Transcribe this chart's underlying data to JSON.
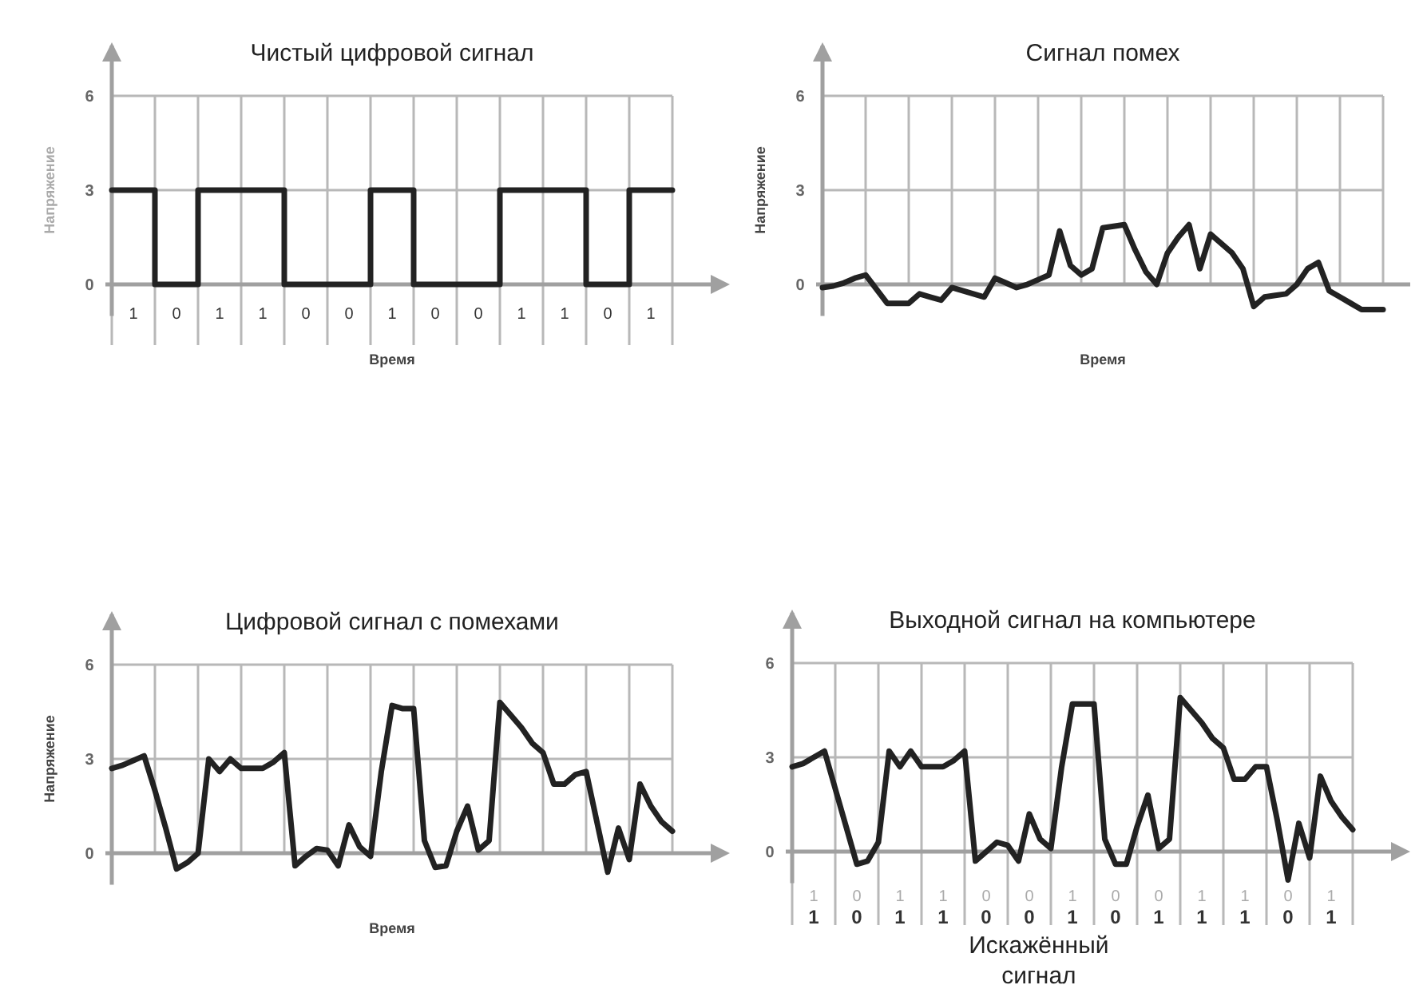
{
  "chart_data": [
    {
      "type": "step",
      "title": "Чистый цифровой сигнал",
      "xlabel": "Время",
      "ylabel": "Напряжение",
      "ylim": [
        -1,
        7.6
      ],
      "yticks": [
        0,
        3,
        6
      ],
      "grid": true,
      "categories": [
        null,
        null,
        "1",
        null,
        null,
        null,
        "0",
        null,
        null,
        null,
        "1",
        null,
        null,
        null,
        "1",
        null,
        null,
        null,
        "0",
        null,
        null,
        null,
        "0",
        null,
        null,
        null,
        "1",
        null,
        null,
        null,
        "0",
        null,
        null,
        null,
        "0",
        null,
        null,
        null,
        "1",
        null,
        null,
        null,
        "1",
        null,
        null,
        null,
        "0",
        null,
        null,
        null,
        "1",
        null,
        null
      ],
      "series": [
        {
          "color": "#222222",
          "values": [
            3,
            3,
            3,
            3,
            0,
            0,
            0,
            0,
            3,
            3,
            3,
            3,
            3,
            3,
            3,
            3,
            0,
            0,
            0,
            0,
            0,
            0,
            0,
            0,
            3,
            3,
            3,
            3,
            0,
            0,
            0,
            0,
            0,
            0,
            0,
            0,
            3,
            3,
            3,
            3,
            3,
            3,
            3,
            3,
            0,
            0,
            0,
            0,
            3,
            3,
            3,
            3,
            3
          ]
        }
      ]
    },
    {
      "type": "line",
      "title": "Сигнал помех",
      "xlabel": "Время",
      "ylabel": "Напряжение",
      "ylim": [
        -1,
        7.6
      ],
      "yticks": [
        0,
        3,
        6
      ],
      "grid": true,
      "categories": [
        null,
        null,
        null,
        null,
        null,
        null,
        null,
        null,
        null,
        null,
        null,
        null,
        null,
        null,
        null,
        null,
        null,
        null,
        null,
        null,
        null,
        null,
        null,
        null,
        null,
        null,
        null,
        null,
        null,
        null,
        null,
        null,
        null,
        null,
        null,
        null,
        null,
        null,
        null,
        null,
        null,
        null,
        null,
        null,
        null,
        null,
        null,
        null,
        null,
        null,
        null,
        null,
        null
      ],
      "series": [
        {
          "color": "#222222",
          "values": [
            -0.1,
            -0.05,
            0.05,
            0.2,
            0.3,
            -0.15,
            -0.6,
            -0.6,
            -0.6,
            -0.3,
            -0.4,
            -0.5,
            -0.1,
            -0.2,
            -0.3,
            -0.4,
            0.2,
            0.05,
            -0.1,
            0,
            0.15,
            0.3,
            1.7,
            0.6,
            0.3,
            0.5,
            1.8,
            1.85,
            1.9,
            1.1,
            0.4,
            0,
            1.0,
            1.5,
            1.9,
            0.5,
            1.6,
            1.3,
            1.0,
            0.5,
            -0.7,
            -0.4,
            -0.35,
            -0.3,
            0,
            0.5,
            0.7,
            -0.2,
            -0.4,
            -0.6,
            -0.8,
            -0.8,
            -0.8
          ]
        }
      ]
    },
    {
      "type": "line",
      "title": "Цифровой сигнал с помехами",
      "xlabel": "Время",
      "ylabel": "Напряжение",
      "ylim": [
        -1,
        7.6
      ],
      "yticks": [
        0,
        3,
        6
      ],
      "grid": true,
      "categories": [
        null,
        null,
        null,
        null,
        null,
        null,
        null,
        null,
        null,
        null,
        null,
        null,
        null,
        null,
        null,
        null,
        null,
        null,
        null,
        null,
        null,
        null,
        null,
        null,
        null,
        null,
        null,
        null,
        null,
        null,
        null,
        null,
        null,
        null,
        null,
        null,
        null,
        null,
        null,
        null,
        null,
        null,
        null,
        null,
        null,
        null,
        null,
        null,
        null,
        null,
        null,
        null,
        null
      ],
      "series": [
        {
          "color": "#222222",
          "values": [
            2.7,
            2.8,
            2.95,
            3.1,
            2.0,
            0.8,
            -0.5,
            -0.3,
            0,
            3.0,
            2.6,
            3.0,
            2.7,
            2.7,
            2.7,
            2.9,
            3.2,
            -0.4,
            -0.1,
            0.15,
            0.1,
            -0.4,
            0.9,
            0.2,
            -0.1,
            2.6,
            4.7,
            4.6,
            4.6,
            0.4,
            -0.45,
            -0.4,
            0.7,
            1.5,
            0.1,
            0.4,
            4.8,
            4.4,
            4.0,
            3.5,
            3.2,
            2.2,
            2.2,
            2.5,
            2.6,
            1.0,
            -0.6,
            0.8,
            -0.2,
            2.2,
            1.5,
            1.0,
            0.7
          ]
        }
      ]
    },
    {
      "type": "line",
      "title": "Выходной сигнал на компьютере",
      "ylim": [
        -1,
        7.6
      ],
      "yticks": [
        0,
        3,
        6
      ],
      "grid": true,
      "annotations": [
        "1 0 1 1 0 0 1 0 0 1 1 0 1",
        "Искажённый сигнал"
      ],
      "categories": [
        null,
        null,
        "1",
        null,
        null,
        null,
        "0",
        null,
        null,
        null,
        "1",
        null,
        null,
        null,
        "1",
        null,
        null,
        null,
        "0",
        null,
        null,
        null,
        "0",
        null,
        null,
        null,
        "1",
        null,
        null,
        null,
        "0",
        null,
        null,
        null,
        "1",
        null,
        null,
        null,
        "1",
        null,
        null,
        null,
        "1",
        null,
        null,
        null,
        "0",
        null,
        null,
        null,
        "1",
        null,
        null
      ],
      "series": [
        {
          "color": "#222222",
          "values": [
            2.7,
            2.8,
            3.0,
            3.2,
            2.0,
            0.8,
            -0.4,
            -0.3,
            0.3,
            3.2,
            2.7,
            3.2,
            2.7,
            2.7,
            2.7,
            2.9,
            3.2,
            -0.3,
            0,
            0.3,
            0.2,
            -0.3,
            1.2,
            0.4,
            0.1,
            2.7,
            4.7,
            4.7,
            4.7,
            0.4,
            -0.4,
            -0.4,
            0.8,
            1.8,
            0.1,
            0.4,
            4.9,
            4.5,
            4.1,
            3.6,
            3.3,
            2.3,
            2.3,
            2.7,
            2.7,
            1.0,
            -0.9,
            0.9,
            -0.2,
            2.4,
            1.6,
            1.1,
            0.7
          ]
        }
      ]
    }
  ]
}
